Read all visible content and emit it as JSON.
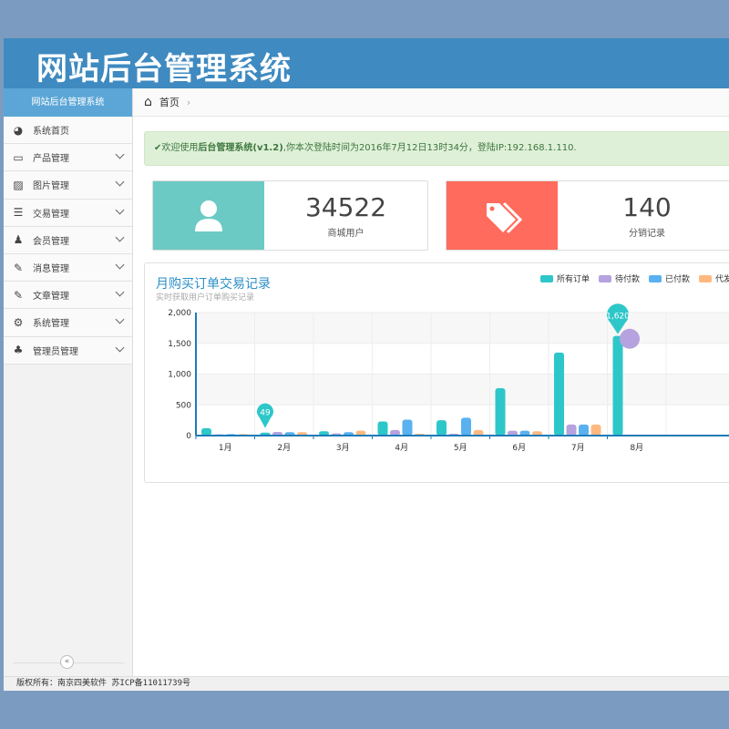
{
  "header": {
    "title": "网站后台管理系统"
  },
  "sidebar": {
    "title": "网站后台管理系统",
    "items": [
      {
        "label": "系统首页",
        "icon": "dashboard-icon",
        "glyph": "◕",
        "chev": false
      },
      {
        "label": "产品管理",
        "icon": "monitor-icon",
        "glyph": "▭",
        "chev": true
      },
      {
        "label": "图片管理",
        "icon": "image-icon",
        "glyph": "▨",
        "chev": true
      },
      {
        "label": "交易管理",
        "icon": "list-icon",
        "glyph": "☰",
        "chev": true
      },
      {
        "label": "会员管理",
        "icon": "user-icon",
        "glyph": "♟",
        "chev": true
      },
      {
        "label": "消息管理",
        "icon": "edit-icon",
        "glyph": "✎",
        "chev": true
      },
      {
        "label": "文章管理",
        "icon": "edit-icon",
        "glyph": "✎",
        "chev": true
      },
      {
        "label": "系统管理",
        "icon": "gears-icon",
        "glyph": "⚙",
        "chev": true
      },
      {
        "label": "管理员管理",
        "icon": "users-icon",
        "glyph": "♣",
        "chev": true
      }
    ],
    "collapse": "«"
  },
  "breadcrumb": {
    "home": "首页",
    "sep": "›"
  },
  "alert": {
    "check": "✔",
    "pre": "欢迎使用",
    "bold": "后台管理系统(v1.2)",
    "post": ",你本次登陆时间为2016年7月12日13时34分，登陆IP:192.168.1.110."
  },
  "cards": [
    {
      "value": "34522",
      "label": "商城用户",
      "color": "#6ccac4",
      "icon": "user-icon"
    },
    {
      "value": "140",
      "label": "分销记录",
      "color": "#ff6b5c",
      "icon": "tags-icon"
    }
  ],
  "chart_data": {
    "type": "bar",
    "title": "月购买订单交易记录",
    "subtitle": "实时获取用户订单购买记录",
    "categories": [
      "1月",
      "2月",
      "3月",
      "4月",
      "5月",
      "6月",
      "7月",
      "8月"
    ],
    "ylim": [
      0,
      2000
    ],
    "yticks": [
      "0",
      "500",
      "1,000",
      "1,500",
      "2,000"
    ],
    "grid": true,
    "legend": "top-right",
    "series": [
      {
        "name": "所有订单",
        "color": "#2ec7c9",
        "values": [
          120,
          49,
          70,
          230,
          250,
          770,
          1350,
          1620
        ]
      },
      {
        "name": "待付款",
        "color": "#b6a2de",
        "values": [
          20,
          60,
          35,
          90,
          30,
          80,
          180,
          null
        ]
      },
      {
        "name": "已付款",
        "color": "#5ab1ef",
        "values": [
          25,
          55,
          55,
          260,
          290,
          80,
          180,
          null
        ]
      },
      {
        "name": "代发货",
        "color": "#ffb980",
        "values": [
          25,
          55,
          80,
          30,
          90,
          70,
          180,
          null
        ]
      }
    ],
    "markpoints": [
      {
        "label": "49"
      },
      {
        "label": "1,620"
      }
    ]
  },
  "footer": "版权所有：南京四美软件 苏ICP备11011739号"
}
